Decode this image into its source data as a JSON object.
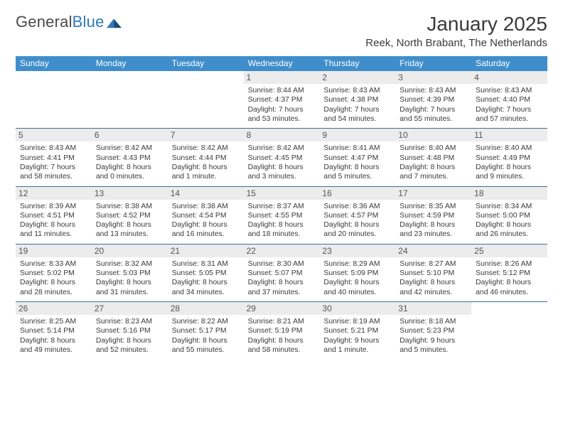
{
  "logo": {
    "word1": "General",
    "word2": "Blue"
  },
  "title": "January 2025",
  "location": "Reek, North Brabant, The Netherlands",
  "colors": {
    "header_bg": "#3f8ecb",
    "header_text": "#ffffff",
    "rule": "#3f6e9a",
    "daynum_bg": "#ececec",
    "text": "#3a3a3a",
    "logo_blue": "#2f79b9"
  },
  "day_names": [
    "Sunday",
    "Monday",
    "Tuesday",
    "Wednesday",
    "Thursday",
    "Friday",
    "Saturday"
  ],
  "weeks": [
    [
      {
        "day": "",
        "lines": []
      },
      {
        "day": "",
        "lines": []
      },
      {
        "day": "",
        "lines": []
      },
      {
        "day": "1",
        "lines": [
          "Sunrise: 8:44 AM",
          "Sunset: 4:37 PM",
          "Daylight: 7 hours",
          "and 53 minutes."
        ]
      },
      {
        "day": "2",
        "lines": [
          "Sunrise: 8:43 AM",
          "Sunset: 4:38 PM",
          "Daylight: 7 hours",
          "and 54 minutes."
        ]
      },
      {
        "day": "3",
        "lines": [
          "Sunrise: 8:43 AM",
          "Sunset: 4:39 PM",
          "Daylight: 7 hours",
          "and 55 minutes."
        ]
      },
      {
        "day": "4",
        "lines": [
          "Sunrise: 8:43 AM",
          "Sunset: 4:40 PM",
          "Daylight: 7 hours",
          "and 57 minutes."
        ]
      }
    ],
    [
      {
        "day": "5",
        "lines": [
          "Sunrise: 8:43 AM",
          "Sunset: 4:41 PM",
          "Daylight: 7 hours",
          "and 58 minutes."
        ]
      },
      {
        "day": "6",
        "lines": [
          "Sunrise: 8:42 AM",
          "Sunset: 4:43 PM",
          "Daylight: 8 hours",
          "and 0 minutes."
        ]
      },
      {
        "day": "7",
        "lines": [
          "Sunrise: 8:42 AM",
          "Sunset: 4:44 PM",
          "Daylight: 8 hours",
          "and 1 minute."
        ]
      },
      {
        "day": "8",
        "lines": [
          "Sunrise: 8:42 AM",
          "Sunset: 4:45 PM",
          "Daylight: 8 hours",
          "and 3 minutes."
        ]
      },
      {
        "day": "9",
        "lines": [
          "Sunrise: 8:41 AM",
          "Sunset: 4:47 PM",
          "Daylight: 8 hours",
          "and 5 minutes."
        ]
      },
      {
        "day": "10",
        "lines": [
          "Sunrise: 8:40 AM",
          "Sunset: 4:48 PM",
          "Daylight: 8 hours",
          "and 7 minutes."
        ]
      },
      {
        "day": "11",
        "lines": [
          "Sunrise: 8:40 AM",
          "Sunset: 4:49 PM",
          "Daylight: 8 hours",
          "and 9 minutes."
        ]
      }
    ],
    [
      {
        "day": "12",
        "lines": [
          "Sunrise: 8:39 AM",
          "Sunset: 4:51 PM",
          "Daylight: 8 hours",
          "and 11 minutes."
        ]
      },
      {
        "day": "13",
        "lines": [
          "Sunrise: 8:38 AM",
          "Sunset: 4:52 PM",
          "Daylight: 8 hours",
          "and 13 minutes."
        ]
      },
      {
        "day": "14",
        "lines": [
          "Sunrise: 8:38 AM",
          "Sunset: 4:54 PM",
          "Daylight: 8 hours",
          "and 16 minutes."
        ]
      },
      {
        "day": "15",
        "lines": [
          "Sunrise: 8:37 AM",
          "Sunset: 4:55 PM",
          "Daylight: 8 hours",
          "and 18 minutes."
        ]
      },
      {
        "day": "16",
        "lines": [
          "Sunrise: 8:36 AM",
          "Sunset: 4:57 PM",
          "Daylight: 8 hours",
          "and 20 minutes."
        ]
      },
      {
        "day": "17",
        "lines": [
          "Sunrise: 8:35 AM",
          "Sunset: 4:59 PM",
          "Daylight: 8 hours",
          "and 23 minutes."
        ]
      },
      {
        "day": "18",
        "lines": [
          "Sunrise: 8:34 AM",
          "Sunset: 5:00 PM",
          "Daylight: 8 hours",
          "and 26 minutes."
        ]
      }
    ],
    [
      {
        "day": "19",
        "lines": [
          "Sunrise: 8:33 AM",
          "Sunset: 5:02 PM",
          "Daylight: 8 hours",
          "and 28 minutes."
        ]
      },
      {
        "day": "20",
        "lines": [
          "Sunrise: 8:32 AM",
          "Sunset: 5:03 PM",
          "Daylight: 8 hours",
          "and 31 minutes."
        ]
      },
      {
        "day": "21",
        "lines": [
          "Sunrise: 8:31 AM",
          "Sunset: 5:05 PM",
          "Daylight: 8 hours",
          "and 34 minutes."
        ]
      },
      {
        "day": "22",
        "lines": [
          "Sunrise: 8:30 AM",
          "Sunset: 5:07 PM",
          "Daylight: 8 hours",
          "and 37 minutes."
        ]
      },
      {
        "day": "23",
        "lines": [
          "Sunrise: 8:29 AM",
          "Sunset: 5:09 PM",
          "Daylight: 8 hours",
          "and 40 minutes."
        ]
      },
      {
        "day": "24",
        "lines": [
          "Sunrise: 8:27 AM",
          "Sunset: 5:10 PM",
          "Daylight: 8 hours",
          "and 42 minutes."
        ]
      },
      {
        "day": "25",
        "lines": [
          "Sunrise: 8:26 AM",
          "Sunset: 5:12 PM",
          "Daylight: 8 hours",
          "and 46 minutes."
        ]
      }
    ],
    [
      {
        "day": "26",
        "lines": [
          "Sunrise: 8:25 AM",
          "Sunset: 5:14 PM",
          "Daylight: 8 hours",
          "and 49 minutes."
        ]
      },
      {
        "day": "27",
        "lines": [
          "Sunrise: 8:23 AM",
          "Sunset: 5:16 PM",
          "Daylight: 8 hours",
          "and 52 minutes."
        ]
      },
      {
        "day": "28",
        "lines": [
          "Sunrise: 8:22 AM",
          "Sunset: 5:17 PM",
          "Daylight: 8 hours",
          "and 55 minutes."
        ]
      },
      {
        "day": "29",
        "lines": [
          "Sunrise: 8:21 AM",
          "Sunset: 5:19 PM",
          "Daylight: 8 hours",
          "and 58 minutes."
        ]
      },
      {
        "day": "30",
        "lines": [
          "Sunrise: 8:19 AM",
          "Sunset: 5:21 PM",
          "Daylight: 9 hours",
          "and 1 minute."
        ]
      },
      {
        "day": "31",
        "lines": [
          "Sunrise: 8:18 AM",
          "Sunset: 5:23 PM",
          "Daylight: 9 hours",
          "and 5 minutes."
        ]
      },
      {
        "day": "",
        "lines": []
      }
    ]
  ]
}
